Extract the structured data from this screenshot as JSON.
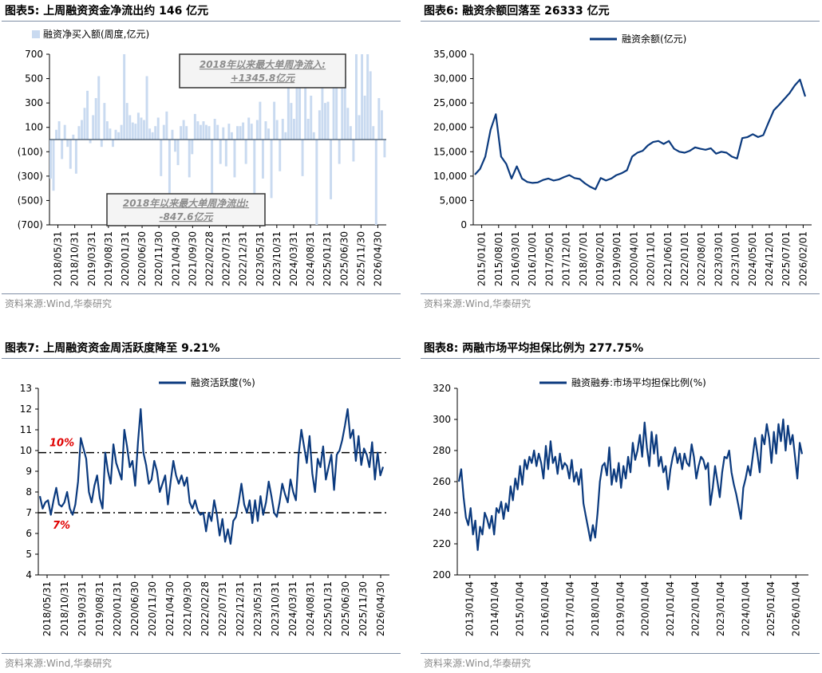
{
  "panels": [
    {
      "id": "p5",
      "title": "图表5:  上周融资资金净流出约 146 亿元",
      "source": "资料来源:Wind,华泰研究"
    },
    {
      "id": "p6",
      "title": "图表6:  融资余额回落至 26333 亿元",
      "source": "资料来源:Wind,华泰研究"
    },
    {
      "id": "p7",
      "title": "图表7:  上周融资资金周活跃度降至 9.21%",
      "source": "资料来源:Wind,华泰研究"
    },
    {
      "id": "p8",
      "title": "图表8:  两融市场平均担保比例为 277.75%",
      "source": "资料来源:Wind,华泰研究"
    }
  ],
  "chart_data": [
    {
      "type": "bar",
      "legend": "融资净买入额(周度,亿元)",
      "legend_position": "top-left",
      "ylim": [
        -700,
        700
      ],
      "yticks": [
        "700",
        "500",
        "300",
        "100",
        "(100)",
        "(300)",
        "(500)",
        "(700)"
      ],
      "ytick_values": [
        700,
        500,
        300,
        100,
        -100,
        -300,
        -500,
        -700
      ],
      "x_ticks": [
        "2018/05/31",
        "2018/10/31",
        "2019/03/31",
        "2019/08/31",
        "2020/01/31",
        "2020/06/30",
        "2020/11/30",
        "2021/04/30",
        "2021/09/30",
        "2022/02/28",
        "2022/07/31",
        "2022/12/31",
        "2023/05/31",
        "2023/10/31",
        "2024/03/31",
        "2024/08/31",
        "2025/01/31",
        "2025/06/30",
        "2025/11/30",
        "2026/04/30"
      ],
      "values": [
        -320,
        -420,
        80,
        150,
        -160,
        120,
        -60,
        -240,
        40,
        -280,
        110,
        160,
        260,
        400,
        -30,
        200,
        340,
        520,
        -60,
        300,
        150,
        90,
        -60,
        80,
        60,
        120,
        700,
        300,
        200,
        140,
        130,
        220,
        180,
        160,
        520,
        90,
        60,
        110,
        180,
        -300,
        120,
        230,
        -440,
        80,
        -100,
        -210,
        110,
        160,
        110,
        -310,
        -120,
        210,
        150,
        120,
        150,
        120,
        110,
        -470,
        170,
        120,
        -200,
        100,
        -220,
        130,
        60,
        -310,
        110,
        110,
        140,
        -200,
        180,
        130,
        -560,
        160,
        310,
        -320,
        150,
        90,
        -480,
        310,
        160,
        -260,
        170,
        60,
        700,
        300,
        170,
        460,
        560,
        -300,
        700,
        170,
        360,
        60,
        -700,
        240,
        560,
        300,
        310,
        -490,
        460,
        600,
        -200,
        420,
        520,
        260,
        110,
        -180,
        700,
        200,
        700,
        360,
        700,
        560,
        110,
        -700,
        340,
        240,
        -146
      ],
      "annotations": [
        {
          "text_line1": "2018年以来最大单周净流入:",
          "text_line2": "+1345.8亿元"
        },
        {
          "text_line1": "2018年以来最大单周净流出:",
          "text_line2": "-847.6亿元"
        }
      ],
      "grid": false
    },
    {
      "type": "line",
      "legend": "融资余额(亿元)",
      "legend_position": "top-center",
      "ylim": [
        0,
        35000
      ],
      "yticks": [
        "35,000",
        "30,000",
        "25,000",
        "20,000",
        "15,000",
        "10,000",
        "5,000",
        "0"
      ],
      "ytick_values": [
        35000,
        30000,
        25000,
        20000,
        15000,
        10000,
        5000,
        0
      ],
      "x_ticks": [
        "2015/01/01",
        "2015/08/01",
        "2016/03/01",
        "2016/10/01",
        "2017/05/01",
        "2017/12/01",
        "2018/07/01",
        "2019/02/01",
        "2019/09/01",
        "2020/04/01",
        "2020/11/01",
        "2021/06/01",
        "2022/01/01",
        "2022/08/01",
        "2023/03/01",
        "2023/10/01",
        "2024/05/01",
        "2024/12/01",
        "2025/07/01",
        "2026/02/01"
      ],
      "x": [
        "2015/01/01",
        "2015/02/15",
        "2015/04/01",
        "2015/05/15",
        "2015/06/18",
        "2015/07/10",
        "2015/08/01",
        "2015/09/15",
        "2015/11/01",
        "2015/12/01",
        "2016/01/15",
        "2016/03/01",
        "2016/06/01",
        "2016/09/01",
        "2016/12/01",
        "2017/03/01",
        "2017/06/01",
        "2017/09/01",
        "2017/12/01",
        "2018/03/01",
        "2018/06/01",
        "2018/09/01",
        "2018/12/01",
        "2019/02/01",
        "2019/04/01",
        "2019/06/01",
        "2019/09/01",
        "2019/12/01",
        "2020/03/01",
        "2020/06/01",
        "2020/07/15",
        "2020/09/01",
        "2020/11/01",
        "2021/01/01",
        "2021/03/01",
        "2021/06/01",
        "2021/09/01",
        "2021/12/01",
        "2022/03/01",
        "2022/06/01",
        "2022/09/01",
        "2022/12/01",
        "2023/03/01",
        "2023/06/01",
        "2023/09/01",
        "2023/12/01",
        "2024/02/05",
        "2024/03/01",
        "2024/06/01",
        "2024/08/15",
        "2024/09/01",
        "2024/10/15",
        "2024/12/01",
        "2025/02/01",
        "2025/04/01",
        "2025/06/01",
        "2025/08/01",
        "2025/09/15",
        "2025/11/01",
        "2026/01/01",
        "2026/02/15",
        "2026/04/01",
        "2026/05/01",
        "2026/05/20"
      ],
      "values": [
        10300,
        11500,
        14000,
        19500,
        22700,
        14000,
        12500,
        9500,
        12000,
        9500,
        8800,
        8600,
        8700,
        9200,
        9500,
        9100,
        9300,
        9800,
        10200,
        9600,
        9400,
        8500,
        7800,
        7300,
        9600,
        9100,
        9500,
        10200,
        10600,
        11200,
        14000,
        14800,
        15200,
        16300,
        17000,
        17200,
        16600,
        17200,
        15600,
        15000,
        14800,
        15200,
        15900,
        15600,
        15400,
        15700,
        14600,
        15000,
        14800,
        14000,
        13600,
        17800,
        18000,
        18600,
        18000,
        18400,
        21000,
        23500,
        24600,
        25800,
        27000,
        28600,
        29800,
        26333
      ],
      "grid": false
    },
    {
      "type": "line",
      "legend": "融资活跃度(%)",
      "legend_position": "top-center",
      "ylim": [
        4,
        13
      ],
      "yticks": [
        "13",
        "12",
        "11",
        "10",
        "9",
        "8",
        "7",
        "6",
        "5",
        "4"
      ],
      "ytick_values": [
        13,
        12,
        11,
        10,
        9,
        8,
        7,
        6,
        5,
        4
      ],
      "x_ticks": [
        "2018/05/31",
        "2018/10/31",
        "2019/03/31",
        "2019/08/31",
        "2020/01/31",
        "2020/06/30",
        "2020/11/30",
        "2021/04/30",
        "2021/09/30",
        "2022/02/28",
        "2022/07/31",
        "2022/12/31",
        "2023/05/31",
        "2023/10/31",
        "2024/03/31",
        "2024/08/31",
        "2025/01/31",
        "2025/06/30",
        "2025/11/30",
        "2026/04/30"
      ],
      "values": [
        7.8,
        7.2,
        7.5,
        7.6,
        6.9,
        7.6,
        8.2,
        7.4,
        7.3,
        7.5,
        8.0,
        7.2,
        6.9,
        7.4,
        8.5,
        10.6,
        10.1,
        9.6,
        8.0,
        7.5,
        8.3,
        8.8,
        7.7,
        7.2,
        9.9,
        9.0,
        8.4,
        10.3,
        9.4,
        9.0,
        8.6,
        11.0,
        10.2,
        9.2,
        9.5,
        8.3,
        10.4,
        12.0,
        9.9,
        9.3,
        8.4,
        8.6,
        9.5,
        9.0,
        8.0,
        8.4,
        8.8,
        7.4,
        8.5,
        9.5,
        8.8,
        8.4,
        8.8,
        8.3,
        8.7,
        7.5,
        7.2,
        7.6,
        7.1,
        6.9,
        7.0,
        6.1,
        7.0,
        6.6,
        7.6,
        6.9,
        5.9,
        6.7,
        5.6,
        6.2,
        5.5,
        6.6,
        6.8,
        7.5,
        8.4,
        7.4,
        7.0,
        7.6,
        6.5,
        7.6,
        6.6,
        7.8,
        6.9,
        7.5,
        8.5,
        7.8,
        7.0,
        6.8,
        7.5,
        8.4,
        7.9,
        7.5,
        8.6,
        8.0,
        7.6,
        9.8,
        11.0,
        10.2,
        9.4,
        10.7,
        8.9,
        8.0,
        9.6,
        9.2,
        10.2,
        8.6,
        9.2,
        9.8,
        8.1,
        9.8,
        10.0,
        10.5,
        11.2,
        12.0,
        10.6,
        11.0,
        9.5,
        10.7,
        9.3,
        10.1,
        9.8,
        9.2,
        10.4,
        8.6,
        9.9,
        8.8,
        9.21
      ],
      "reference_lines": [
        {
          "value": 9.9,
          "label": "10%"
        },
        {
          "value": 7.0,
          "label": "7%"
        }
      ],
      "grid": false
    },
    {
      "type": "line",
      "legend": "融资融券:市场平均担保比例(%)",
      "legend_position": "top-center",
      "ylim": [
        200,
        320
      ],
      "yticks": [
        "320",
        "300",
        "280",
        "260",
        "240",
        "220",
        "200"
      ],
      "ytick_values": [
        320,
        300,
        280,
        260,
        240,
        220,
        200
      ],
      "x_ticks": [
        "2013/01/04",
        "2014/01/04",
        "2015/01/04",
        "2016/01/04",
        "2017/01/04",
        "2018/01/04",
        "2019/01/04",
        "2020/01/04",
        "2021/01/04",
        "2022/01/04",
        "2023/01/04",
        "2024/01/04",
        "2025/01/04",
        "2026/01/04"
      ],
      "values": [
        260,
        268,
        250,
        237,
        232,
        243,
        226,
        235,
        216,
        231,
        226,
        240,
        236,
        230,
        238,
        226,
        243,
        240,
        247,
        236,
        246,
        241,
        257,
        248,
        262,
        255,
        270,
        258,
        274,
        268,
        276,
        272,
        280,
        270,
        278,
        272,
        262,
        283,
        268,
        286,
        272,
        276,
        265,
        278,
        268,
        272,
        270,
        262,
        274,
        260,
        266,
        258,
        268,
        246,
        238,
        230,
        222,
        232,
        224,
        240,
        260,
        270,
        272,
        264,
        282,
        258,
        268,
        260,
        272,
        256,
        270,
        262,
        276,
        266,
        285,
        274,
        280,
        290,
        276,
        298,
        282,
        270,
        292,
        278,
        290,
        270,
        276,
        266,
        270,
        255,
        268,
        276,
        282,
        272,
        278,
        268,
        278,
        272,
        270,
        284,
        276,
        262,
        270,
        276,
        274,
        268,
        272,
        245,
        256,
        270,
        260,
        250,
        266,
        276,
        275,
        280,
        266,
        258,
        252,
        244,
        236,
        256,
        262,
        270,
        264,
        276,
        288,
        278,
        266,
        290,
        284,
        297,
        288,
        272,
        292,
        278,
        297,
        286,
        300,
        280,
        296,
        284,
        290,
        276,
        262,
        285,
        277.75
      ],
      "grid": false
    }
  ]
}
